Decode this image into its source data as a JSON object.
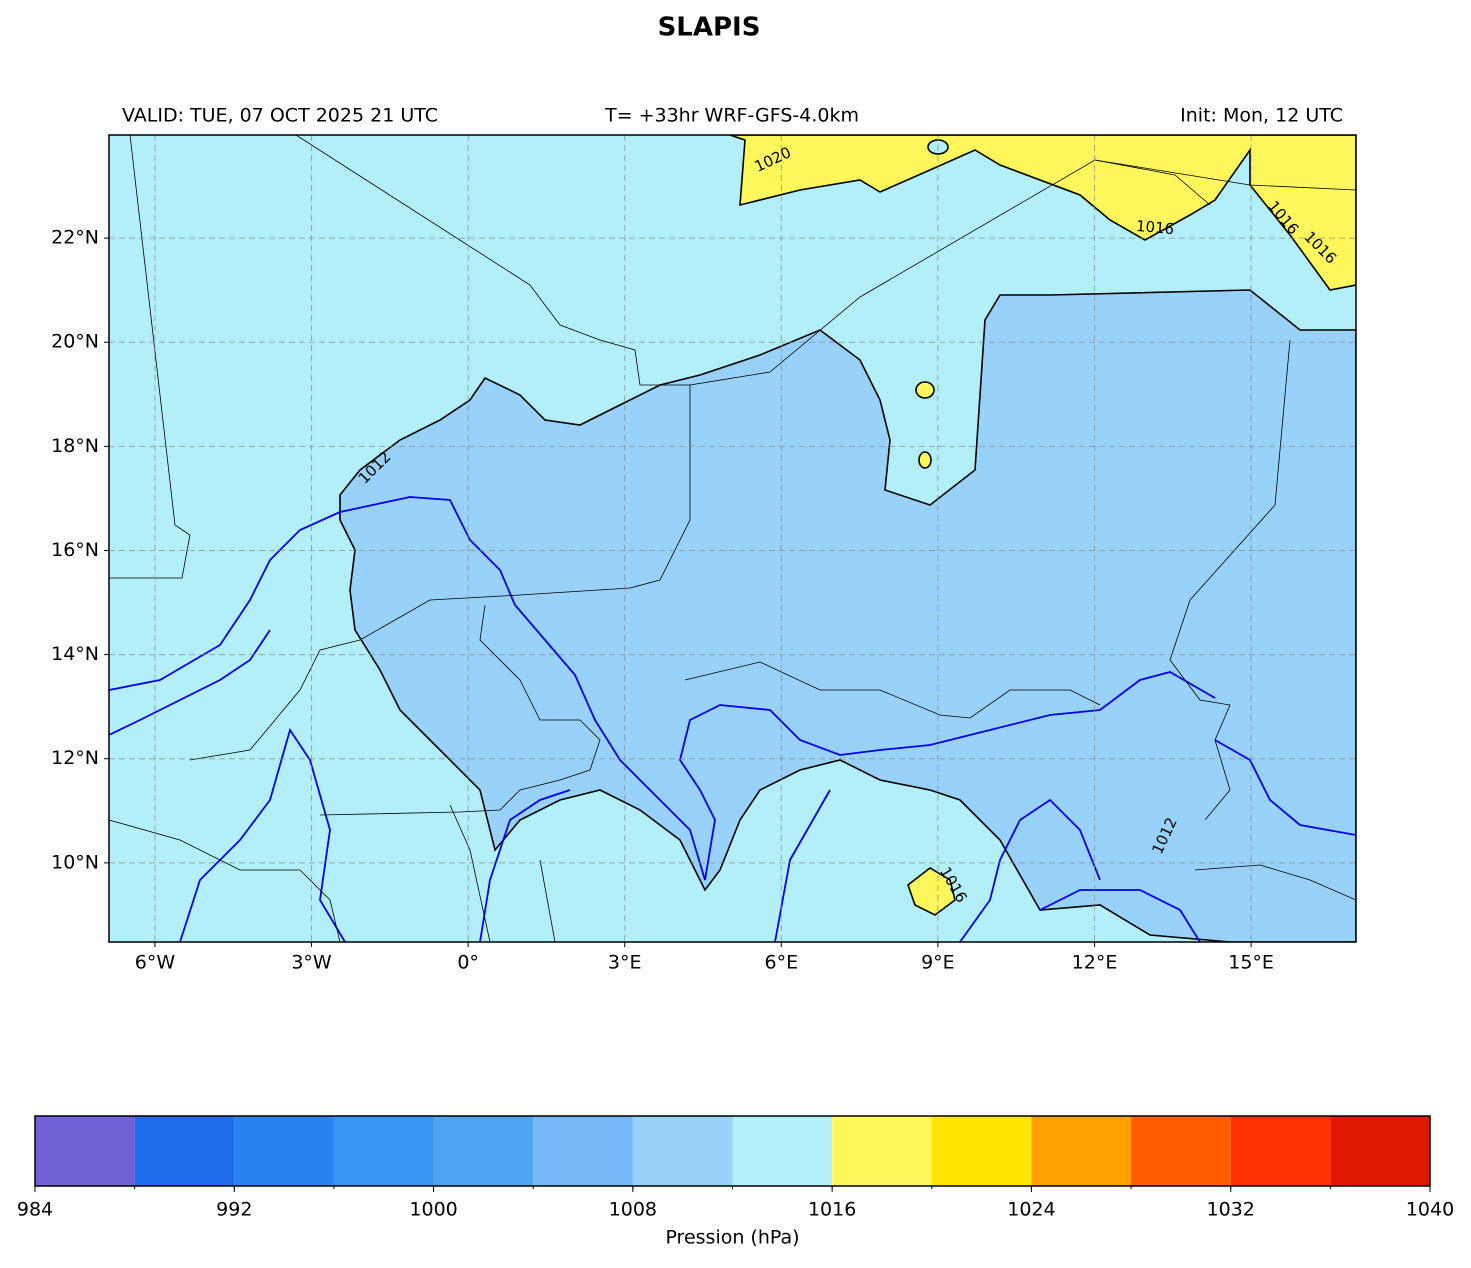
{
  "title": "SLAPIS",
  "header": {
    "valid": "VALID: TUE, 07 OCT 2025 21 UTC",
    "run": "T= +33hr WRF-GFS-4.0km",
    "init": "Init: Mon, 12 UTC"
  },
  "map": {
    "lon_range": [
      -6.88,
      17.01
    ],
    "lat_range": [
      8.48,
      23.98
    ],
    "lon_ticks": [
      {
        "value": -6,
        "label": "6°W"
      },
      {
        "value": -3,
        "label": "3°W"
      },
      {
        "value": 0,
        "label": "0°"
      },
      {
        "value": 3,
        "label": "3°E"
      },
      {
        "value": 6,
        "label": "6°E"
      },
      {
        "value": 9,
        "label": "9°E"
      },
      {
        "value": 12,
        "label": "12°E"
      },
      {
        "value": 15,
        "label": "15°E"
      }
    ],
    "lat_ticks": [
      {
        "value": 10,
        "label": "10°N"
      },
      {
        "value": 12,
        "label": "12°N"
      },
      {
        "value": 14,
        "label": "14°N"
      },
      {
        "value": 16,
        "label": "16°N"
      },
      {
        "value": 18,
        "label": "18°N"
      },
      {
        "value": 20,
        "label": "20°N"
      },
      {
        "value": 22,
        "label": "22°N"
      }
    ],
    "grid": true,
    "contour_labels": [
      1020,
      1016,
      1016,
      1016,
      1012,
      1012,
      1016
    ]
  },
  "colorbar": {
    "levels": [
      984,
      988,
      992,
      996,
      1000,
      1004,
      1008,
      1012,
      1016,
      1020,
      1024,
      1028,
      1032,
      1036,
      1040
    ],
    "colors": [
      "#7162d9",
      "#1f6ced",
      "#2781ee",
      "#3a94f3",
      "#4ea4f0",
      "#74b8f8",
      "#98d1f9",
      "#b3eff8",
      "#fff75c",
      "#ffe500",
      "#ffa000",
      "#ff5c00",
      "#ff3000",
      "#e01800"
    ],
    "ticks": [
      984,
      992,
      1000,
      1008,
      1016,
      1024,
      1032,
      1040
    ],
    "label": "Pression (hPa)"
  }
}
